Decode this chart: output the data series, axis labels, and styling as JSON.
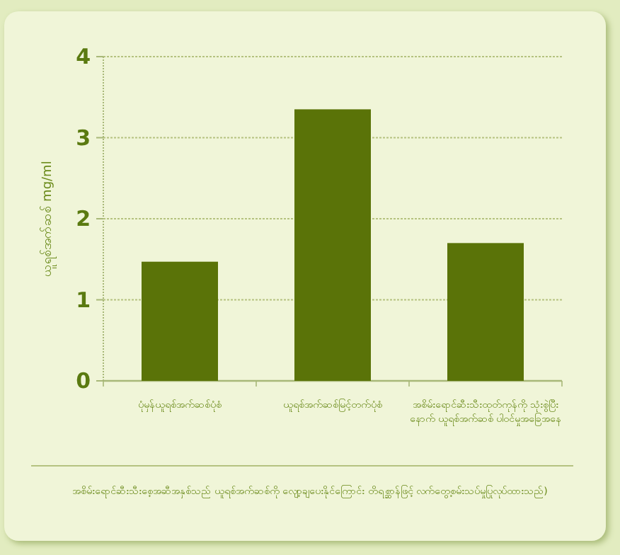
{
  "chart_data": {
    "type": "bar",
    "ylabel": "ယူရစ်အက်ဆစ် mg/ml",
    "categories": [
      "ပုံမှန်ယူရစ်အက်ဆစ်ပုံစံ",
      "ယူရစ်အက်ဆစ်မြင့်တက်ပုံစံ",
      "အစိမ်းရောင်ဆီးသီးထုတ်ကုန်ကို သုံးစွဲပြီးနောက် ယူရစ်အက်ဆစ် ပါဝင်မှုအခြေအနေ"
    ],
    "values": [
      1.47,
      3.35,
      1.7
    ],
    "color": "#5a7308",
    "ylim": [
      0,
      4
    ],
    "yticks": [
      0,
      1,
      2,
      3,
      4
    ],
    "grid": "y",
    "annotations": [
      "အစိမ်းရောင်ဆီးသီးစေ့အဆီအနှစ်သည် ယူရစ်အက်ဆစ်ကို လျော့ချပေးနိုင်ကြောင်း တိရစ္ဆာန်ဖြင့် လက်တွေ့စမ်းသပ်မှုပြုလုပ်ထားသည်)"
    ]
  }
}
